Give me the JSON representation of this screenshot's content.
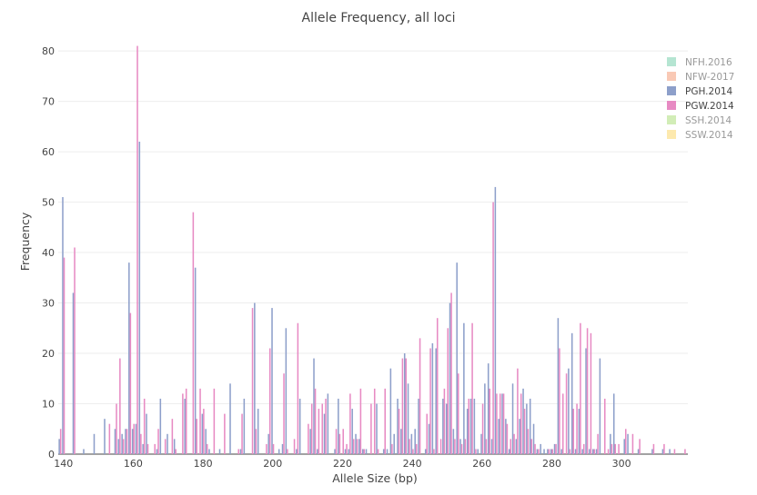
{
  "chart_data": {
    "type": "bar",
    "title": "Allele Frequency, all loci",
    "xlabel": "Allele Size (bp)",
    "ylabel": "Frequency",
    "xlim": [
      138.5,
      319
    ],
    "ylim": [
      0,
      82
    ],
    "xticks": [
      140,
      160,
      180,
      200,
      220,
      240,
      260,
      280,
      300
    ],
    "yticks": [
      0,
      10,
      20,
      30,
      40,
      50,
      60,
      70,
      80
    ],
    "grid": true,
    "legend_position": "top-right",
    "legend": [
      {
        "name": "NFH.2016",
        "color": "#a3dec7",
        "active": false
      },
      {
        "name": "NFW-2017",
        "color": "#f7bba2",
        "active": false
      },
      {
        "name": "PGH.2014",
        "color": "#8d9fca",
        "active": true
      },
      {
        "name": "PGW.2014",
        "color": "#e78ac3",
        "active": true
      },
      {
        "name": "SSH.2014",
        "color": "#c7e8a5",
        "active": false
      },
      {
        "name": "SSW.2014",
        "color": "#fde49a",
        "active": false
      }
    ],
    "series": [
      {
        "name": "PGH.2014",
        "color": "#8d9fca",
        "points": [
          [
            139,
            3
          ],
          [
            140,
            51
          ],
          [
            143,
            32
          ],
          [
            146,
            1
          ],
          [
            149,
            4
          ],
          [
            152,
            7
          ],
          [
            155,
            5
          ],
          [
            156,
            3
          ],
          [
            157,
            4
          ],
          [
            158,
            5
          ],
          [
            159,
            38
          ],
          [
            160,
            5
          ],
          [
            161,
            6
          ],
          [
            162,
            62
          ],
          [
            163,
            2
          ],
          [
            164,
            8
          ],
          [
            167,
            1
          ],
          [
            168,
            11
          ],
          [
            170,
            4
          ],
          [
            172,
            3
          ],
          [
            175,
            11
          ],
          [
            178,
            37
          ],
          [
            180,
            8
          ],
          [
            181,
            5
          ],
          [
            182,
            1
          ],
          [
            185,
            1
          ],
          [
            188,
            14
          ],
          [
            191,
            1
          ],
          [
            192,
            11
          ],
          [
            195,
            30
          ],
          [
            196,
            9
          ],
          [
            199,
            4
          ],
          [
            200,
            29
          ],
          [
            202,
            1
          ],
          [
            203,
            2
          ],
          [
            204,
            25
          ],
          [
            207,
            1
          ],
          [
            208,
            11
          ],
          [
            211,
            5
          ],
          [
            212,
            19
          ],
          [
            213,
            1
          ],
          [
            215,
            8
          ],
          [
            216,
            12
          ],
          [
            218,
            1
          ],
          [
            219,
            11
          ],
          [
            221,
            1
          ],
          [
            222,
            1
          ],
          [
            223,
            9
          ],
          [
            224,
            4
          ],
          [
            225,
            3
          ],
          [
            226,
            1
          ],
          [
            227,
            1
          ],
          [
            230,
            10
          ],
          [
            232,
            1
          ],
          [
            233,
            1
          ],
          [
            234,
            17
          ],
          [
            235,
            4
          ],
          [
            236,
            11
          ],
          [
            237,
            5
          ],
          [
            238,
            20
          ],
          [
            239,
            14
          ],
          [
            240,
            4
          ],
          [
            241,
            5
          ],
          [
            242,
            11
          ],
          [
            244,
            1
          ],
          [
            245,
            6
          ],
          [
            246,
            22
          ],
          [
            247,
            21
          ],
          [
            249,
            11
          ],
          [
            250,
            10
          ],
          [
            251,
            30
          ],
          [
            252,
            5
          ],
          [
            253,
            38
          ],
          [
            254,
            3
          ],
          [
            255,
            26
          ],
          [
            256,
            9
          ],
          [
            257,
            11
          ],
          [
            258,
            11
          ],
          [
            259,
            1
          ],
          [
            260,
            4
          ],
          [
            261,
            14
          ],
          [
            262,
            18
          ],
          [
            263,
            3
          ],
          [
            264,
            53
          ],
          [
            265,
            7
          ],
          [
            266,
            12
          ],
          [
            267,
            7
          ],
          [
            268,
            1
          ],
          [
            269,
            14
          ],
          [
            270,
            3
          ],
          [
            271,
            7
          ],
          [
            272,
            13
          ],
          [
            273,
            10
          ],
          [
            274,
            11
          ],
          [
            275,
            6
          ],
          [
            276,
            1
          ],
          [
            277,
            2
          ],
          [
            278,
            1
          ],
          [
            279,
            1
          ],
          [
            280,
            1
          ],
          [
            281,
            2
          ],
          [
            282,
            27
          ],
          [
            283,
            1
          ],
          [
            285,
            17
          ],
          [
            286,
            24
          ],
          [
            287,
            1
          ],
          [
            288,
            9
          ],
          [
            289,
            1
          ],
          [
            290,
            21
          ],
          [
            291,
            1
          ],
          [
            292,
            1
          ],
          [
            293,
            1
          ],
          [
            294,
            19
          ],
          [
            297,
            4
          ],
          [
            298,
            12
          ],
          [
            301,
            3
          ],
          [
            302,
            4
          ],
          [
            305,
            1
          ],
          [
            309,
            1
          ],
          [
            312,
            1
          ],
          [
            314,
            1
          ]
        ]
      },
      {
        "name": "PGW.2014",
        "color": "#e78ac3",
        "points": [
          [
            139,
            5
          ],
          [
            140,
            39
          ],
          [
            143,
            41
          ],
          [
            153,
            6
          ],
          [
            155,
            10
          ],
          [
            156,
            19
          ],
          [
            157,
            3
          ],
          [
            158,
            5
          ],
          [
            159,
            28
          ],
          [
            160,
            6
          ],
          [
            161,
            81
          ],
          [
            162,
            4
          ],
          [
            163,
            11
          ],
          [
            164,
            2
          ],
          [
            166,
            2
          ],
          [
            167,
            5
          ],
          [
            169,
            3
          ],
          [
            171,
            7
          ],
          [
            172,
            1
          ],
          [
            174,
            12
          ],
          [
            175,
            13
          ],
          [
            177,
            48
          ],
          [
            178,
            7
          ],
          [
            179,
            13
          ],
          [
            180,
            9
          ],
          [
            181,
            2
          ],
          [
            183,
            13
          ],
          [
            186,
            8
          ],
          [
            190,
            1
          ],
          [
            191,
            8
          ],
          [
            194,
            29
          ],
          [
            195,
            5
          ],
          [
            198,
            2
          ],
          [
            199,
            21
          ],
          [
            200,
            2
          ],
          [
            203,
            16
          ],
          [
            204,
            1
          ],
          [
            206,
            3
          ],
          [
            207,
            26
          ],
          [
            210,
            6
          ],
          [
            211,
            10
          ],
          [
            212,
            13
          ],
          [
            213,
            9
          ],
          [
            214,
            10
          ],
          [
            215,
            11
          ],
          [
            218,
            5
          ],
          [
            219,
            4
          ],
          [
            220,
            5
          ],
          [
            221,
            2
          ],
          [
            222,
            12
          ],
          [
            223,
            3
          ],
          [
            224,
            3
          ],
          [
            225,
            13
          ],
          [
            226,
            1
          ],
          [
            228,
            10
          ],
          [
            229,
            13
          ],
          [
            230,
            1
          ],
          [
            232,
            13
          ],
          [
            234,
            2
          ],
          [
            236,
            9
          ],
          [
            237,
            19
          ],
          [
            238,
            19
          ],
          [
            239,
            3
          ],
          [
            240,
            1
          ],
          [
            241,
            2
          ],
          [
            242,
            23
          ],
          [
            244,
            8
          ],
          [
            245,
            21
          ],
          [
            246,
            1
          ],
          [
            247,
            27
          ],
          [
            248,
            3
          ],
          [
            249,
            13
          ],
          [
            250,
            25
          ],
          [
            251,
            32
          ],
          [
            252,
            3
          ],
          [
            253,
            16
          ],
          [
            254,
            2
          ],
          [
            255,
            3
          ],
          [
            256,
            11
          ],
          [
            257,
            26
          ],
          [
            258,
            1
          ],
          [
            260,
            10
          ],
          [
            261,
            3
          ],
          [
            262,
            13
          ],
          [
            263,
            50
          ],
          [
            264,
            12
          ],
          [
            265,
            12
          ],
          [
            266,
            12
          ],
          [
            267,
            6
          ],
          [
            268,
            3
          ],
          [
            269,
            4
          ],
          [
            270,
            17
          ],
          [
            271,
            12
          ],
          [
            272,
            9
          ],
          [
            273,
            5
          ],
          [
            274,
            3
          ],
          [
            275,
            2
          ],
          [
            276,
            1
          ],
          [
            279,
            1
          ],
          [
            280,
            1
          ],
          [
            281,
            2
          ],
          [
            282,
            21
          ],
          [
            283,
            12
          ],
          [
            284,
            16
          ],
          [
            285,
            1
          ],
          [
            286,
            9
          ],
          [
            287,
            10
          ],
          [
            288,
            26
          ],
          [
            289,
            2
          ],
          [
            290,
            25
          ],
          [
            291,
            24
          ],
          [
            292,
            1
          ],
          [
            293,
            4
          ],
          [
            295,
            11
          ],
          [
            296,
            1
          ],
          [
            297,
            2
          ],
          [
            298,
            2
          ],
          [
            299,
            2
          ],
          [
            301,
            5
          ],
          [
            303,
            4
          ],
          [
            305,
            3
          ],
          [
            309,
            2
          ],
          [
            312,
            2
          ],
          [
            315,
            1
          ],
          [
            318,
            1
          ]
        ]
      }
    ]
  }
}
